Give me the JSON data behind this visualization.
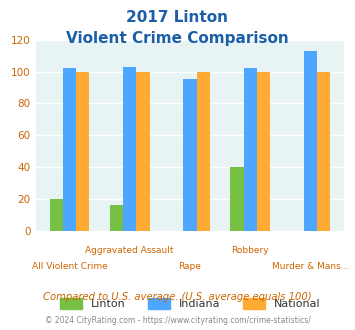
{
  "title_line1": "2017 Linton",
  "title_line2": "Violent Crime Comparison",
  "categories": [
    "All Violent Crime",
    "Aggravated Assault",
    "Rape",
    "Robbery",
    "Murder & Mans..."
  ],
  "linton": [
    20,
    16,
    0,
    40,
    0
  ],
  "indiana": [
    102,
    103,
    95,
    102,
    113
  ],
  "national": [
    100,
    100,
    100,
    100,
    100
  ],
  "linton_color": "#76c043",
  "indiana_color": "#4da6ff",
  "national_color": "#ffaa33",
  "bg_color": "#e8f4f4",
  "ylim": [
    0,
    120
  ],
  "yticks": [
    0,
    20,
    40,
    60,
    80,
    100,
    120
  ],
  "subtitle": "Compared to U.S. average. (U.S. average equals 100)",
  "footer": "© 2024 CityRating.com - https://www.cityrating.com/crime-statistics/",
  "title_color": "#1a5fa8",
  "subtitle_color": "#cc6600",
  "footer_color": "#888888",
  "tick_label_color": "#cc6600",
  "grid_color": "#ffffff",
  "top_labels": [
    "",
    "Aggravated Assault",
    "",
    "Robbery",
    ""
  ],
  "bottom_labels": [
    "All Violent Crime",
    "",
    "Rape",
    "",
    "Murder & Mans..."
  ]
}
